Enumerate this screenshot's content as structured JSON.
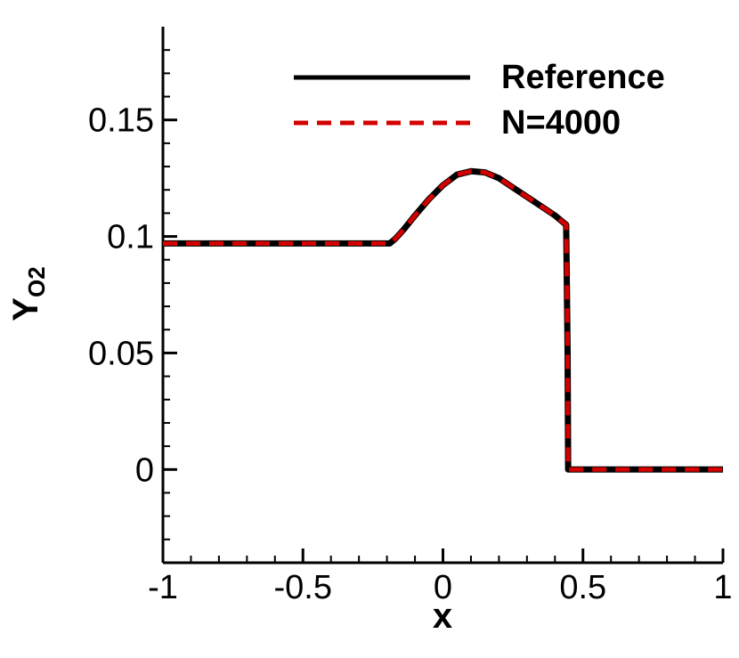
{
  "chart_data": {
    "type": "line",
    "xlabel": "x",
    "ylabel_main": "Y",
    "ylabel_sub": "O2",
    "xlim": [
      -1,
      1
    ],
    "ylim": [
      -0.04,
      0.19
    ],
    "x_ticks": [
      -1,
      -0.5,
      0,
      0.5,
      1
    ],
    "x_tick_labels": [
      "-1",
      "-0.5",
      "0",
      "0.5",
      "1"
    ],
    "y_ticks": [
      0,
      0.05,
      0.1,
      0.15
    ],
    "y_tick_labels": [
      "0",
      "0.05",
      "0.1",
      "0.15"
    ],
    "grid": false,
    "legend_position": "top-right",
    "series": [
      {
        "name": "Reference",
        "style": "solid",
        "color": "#000000",
        "x": [
          -1.0,
          -0.5,
          -0.19,
          -0.17,
          -0.14,
          -0.1,
          -0.05,
          0.0,
          0.05,
          0.1,
          0.15,
          0.2,
          0.25,
          0.3,
          0.35,
          0.4,
          0.44,
          0.445,
          0.447,
          0.5,
          0.75,
          1.0
        ],
        "y": [
          0.097,
          0.097,
          0.097,
          0.099,
          0.103,
          0.109,
          0.116,
          0.122,
          0.1265,
          0.128,
          0.1275,
          0.125,
          0.121,
          0.117,
          0.113,
          0.109,
          0.105,
          0.05,
          0.0,
          0.0,
          0.0,
          0.0
        ]
      },
      {
        "name": "N=4000",
        "style": "dashed",
        "color": "#d40000",
        "x": [
          -1.0,
          -0.5,
          -0.19,
          -0.17,
          -0.14,
          -0.1,
          -0.05,
          0.0,
          0.05,
          0.1,
          0.15,
          0.2,
          0.25,
          0.3,
          0.35,
          0.4,
          0.44,
          0.445,
          0.447,
          0.5,
          0.75,
          1.0
        ],
        "y": [
          0.097,
          0.097,
          0.097,
          0.099,
          0.103,
          0.109,
          0.116,
          0.122,
          0.1265,
          0.128,
          0.1275,
          0.125,
          0.121,
          0.117,
          0.113,
          0.109,
          0.105,
          0.05,
          0.0,
          0.0,
          0.0,
          0.0
        ]
      }
    ]
  }
}
